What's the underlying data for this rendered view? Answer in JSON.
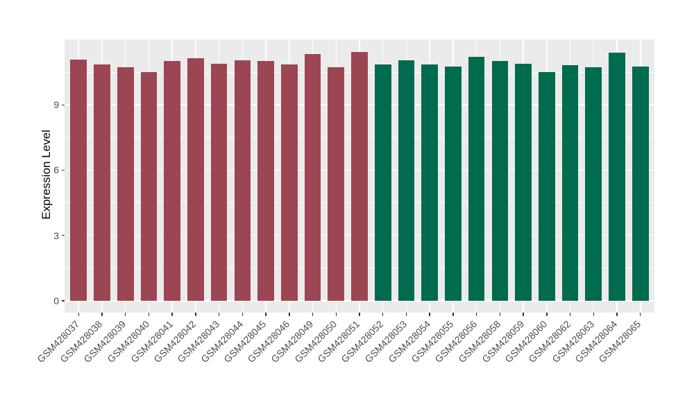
{
  "figure": {
    "background": "#FFFFFF",
    "panel_bg": "#EBEBEB",
    "grid_color": "#FFFFFF",
    "tick_mark_color": "#333333",
    "tick_label_color": "#4D4D4D",
    "axis_title_color": "#000000"
  },
  "chart_data": {
    "type": "bar",
    "title": "",
    "xlabel": "",
    "ylabel": "Expression Level",
    "categories": [
      "GSM428037",
      "GSM428038",
      "GSM428039",
      "GSM428040",
      "GSM428041",
      "GSM428042",
      "GSM428043",
      "GSM428044",
      "GSM428045",
      "GSM428046",
      "GSM428049",
      "GSM428050",
      "GSM428051",
      "GSM428052",
      "GSM428053",
      "GSM428054",
      "GSM428055",
      "GSM428056",
      "GSM428058",
      "GSM428059",
      "GSM428060",
      "GSM428062",
      "GSM428063",
      "GSM428064",
      "GSM428065"
    ],
    "values": [
      11.08,
      10.85,
      10.74,
      10.51,
      11.0,
      11.15,
      10.87,
      11.03,
      11.0,
      10.85,
      11.32,
      10.73,
      11.42,
      10.86,
      11.03,
      10.86,
      10.76,
      11.2,
      11.0,
      10.89,
      10.51,
      10.81,
      10.71,
      11.4,
      10.75
    ],
    "groups": [
      "group1",
      "group1",
      "group1",
      "group1",
      "group1",
      "group1",
      "group1",
      "group1",
      "group1",
      "group1",
      "group1",
      "group1",
      "group1",
      "group2",
      "group2",
      "group2",
      "group2",
      "group2",
      "group2",
      "group2",
      "group2",
      "group2",
      "group2",
      "group2",
      "group2"
    ],
    "group_colors": {
      "group1": "#9C4553",
      "group2": "#006B4E"
    },
    "yticks": [
      0,
      3,
      6,
      9
    ],
    "minor_yticks": [
      1.5,
      4.5,
      7.5,
      10.5
    ],
    "ylim": [
      -0.55,
      12.0
    ],
    "grid": "on",
    "legend": "none"
  }
}
